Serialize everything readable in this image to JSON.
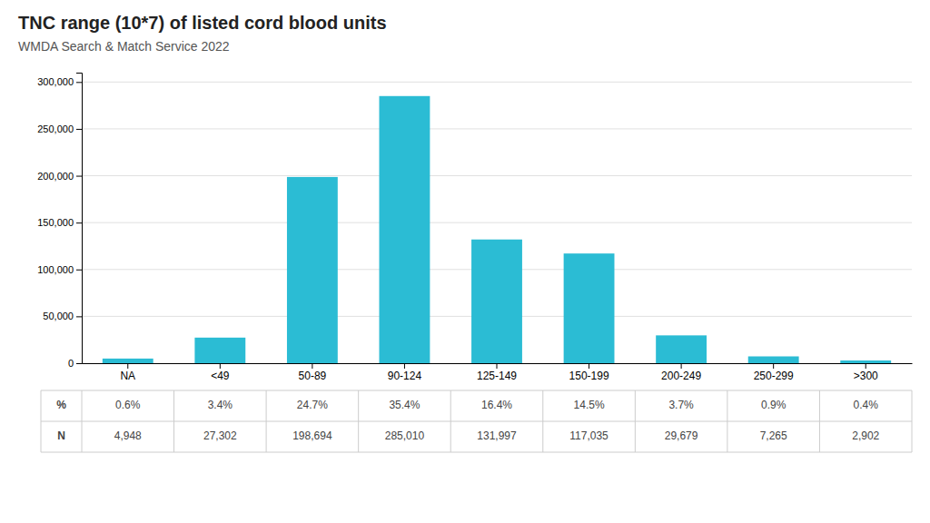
{
  "chart_data": {
    "type": "bar",
    "title": "TNC range (10*7) of listed cord blood units",
    "subtitle": "WMDA Search & Match Service 2022",
    "categories": [
      "NA",
      "<49",
      "50-89",
      "90-124",
      "125-149",
      "150-199",
      "200-249",
      "250-299",
      ">300"
    ],
    "values": [
      4948,
      27302,
      198694,
      285010,
      131997,
      117035,
      29679,
      7265,
      2902
    ],
    "value_labels": [
      "4,948",
      "27,302",
      "198,694",
      "285,010",
      "131,997",
      "117,035",
      "29,679",
      "7,265",
      "2,902"
    ],
    "percentages": [
      "0.6%",
      "3.4%",
      "24.7%",
      "35.4%",
      "16.4%",
      "14.5%",
      "3.7%",
      "0.9%",
      "0.4%"
    ],
    "table_row_labels": [
      "%",
      "N"
    ],
    "color": "#2bbcd4",
    "ylim": [
      0,
      310000
    ],
    "yticks": [
      0,
      {
        "value": 50000,
        "label": "50,000"
      },
      {
        "value": 100000,
        "label": "100,000"
      },
      {
        "value": 150000,
        "label": "150,000"
      },
      {
        "value": 200000,
        "label": "200,000"
      },
      {
        "value": 250000,
        "label": "250,000"
      },
      {
        "value": 300000,
        "label": "300,000"
      }
    ],
    "grid": true
  }
}
